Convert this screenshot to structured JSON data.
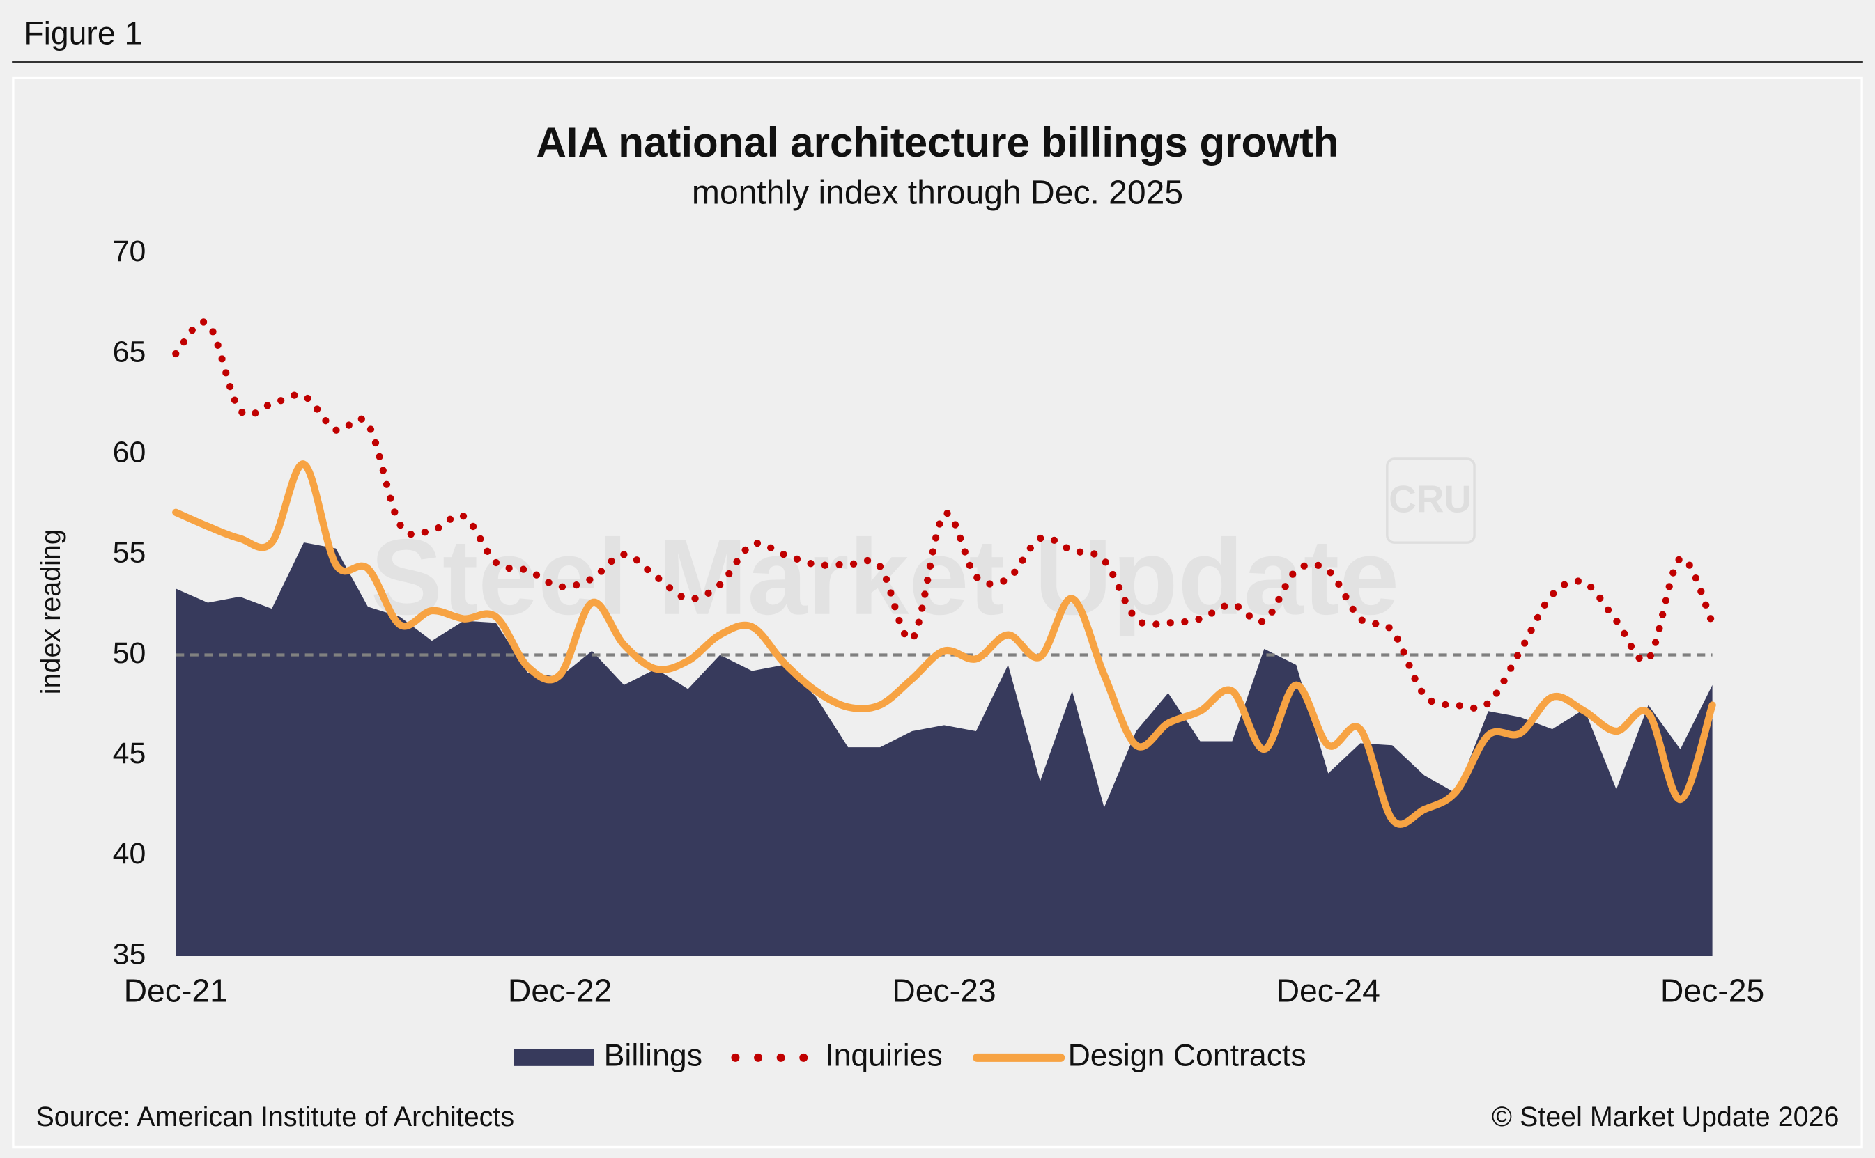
{
  "header": "Figure 1",
  "source": "Source: American Institute of Architects",
  "copyright": "© Steel Market Update 2026",
  "chart_data": {
    "type": "area-line",
    "title": "AIA national architecture billings growth",
    "subtitle": "monthly index through Dec. 2025",
    "y_label": "index reading",
    "watermark": "Steel Market Update",
    "logo": "CRU",
    "reference_line": 50,
    "categories": [
      "Dec-21",
      null,
      null,
      null,
      null,
      null,
      null,
      null,
      null,
      null,
      null,
      null,
      "Dec-22",
      null,
      null,
      null,
      null,
      null,
      null,
      null,
      null,
      null,
      null,
      null,
      "Dec-23",
      null,
      null,
      null,
      null,
      null,
      null,
      null,
      null,
      null,
      null,
      null,
      "Dec-24",
      null,
      null,
      null,
      null,
      null,
      null,
      null,
      null,
      null,
      null,
      null,
      "Dec-25"
    ],
    "ylim": [
      35,
      70
    ],
    "yticks": [
      35,
      40,
      45,
      50,
      55,
      60,
      65,
      70
    ],
    "series": [
      {
        "name": "Billings",
        "color": "#373a5c",
        "style": "area",
        "values": [
          53.3,
          52.6,
          52.9,
          52.3,
          55.6,
          55.3,
          52.4,
          51.9,
          50.7,
          51.7,
          51.6,
          49.1,
          48.9,
          50.2,
          48.5,
          49.3,
          48.3,
          50.0,
          49.2,
          49.5,
          47.9,
          45.4,
          45.4,
          46.2,
          46.5,
          46.2,
          49.5,
          43.7,
          48.2,
          42.4,
          46.2,
          48.1,
          45.7,
          45.7,
          50.3,
          49.5,
          44.1,
          45.6,
          45.5,
          44.0,
          43.1,
          47.2,
          46.9,
          46.3,
          47.3,
          43.3,
          47.5,
          45.3,
          48.5
        ]
      },
      {
        "name": "Inquiries",
        "color": "#c00000",
        "style": "dotted",
        "values": [
          65.0,
          66.5,
          62.2,
          62.5,
          62.9,
          61.2,
          61.5,
          56.5,
          56.2,
          56.9,
          54.6,
          54.2,
          53.4,
          53.8,
          55.0,
          53.9,
          52.8,
          53.5,
          55.5,
          55.0,
          54.5,
          54.5,
          54.4,
          50.8,
          57.0,
          53.9,
          53.8,
          55.8,
          55.2,
          54.7,
          51.8,
          51.6,
          51.8,
          52.5,
          51.7,
          54.2,
          54.2,
          51.8,
          51.2,
          48.0,
          47.5,
          47.6,
          50.2,
          53.0,
          53.6,
          51.7,
          49.8,
          54.8,
          51.6
        ]
      },
      {
        "name": "Design Contracts",
        "color": "#f7a343",
        "style": "line",
        "values": [
          57.1,
          56.4,
          55.8,
          55.6,
          59.5,
          54.5,
          54.3,
          51.5,
          52.2,
          51.8,
          51.9,
          49.4,
          49.0,
          52.6,
          50.5,
          49.3,
          49.7,
          51.0,
          51.4,
          49.6,
          48.2,
          47.4,
          47.5,
          48.8,
          50.2,
          49.8,
          51.0,
          49.9,
          52.8,
          49.0,
          45.5,
          46.6,
          47.2,
          48.2,
          45.3,
          48.5,
          45.5,
          46.3,
          41.8,
          42.3,
          43.2,
          46.0,
          46.1,
          47.9,
          47.2,
          46.2,
          47.1,
          42.8,
          47.5
        ]
      }
    ]
  }
}
